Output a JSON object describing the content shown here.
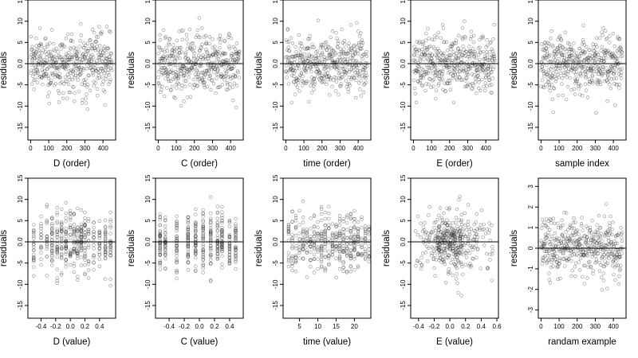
{
  "chart_data": [
    {
      "type": "scatter",
      "xlabel": "D (order)",
      "ylabel": "residuals",
      "xlim": [
        -15,
        470
      ],
      "xticks": [
        0,
        100,
        200,
        300,
        400
      ],
      "xtick_labels": [
        "0",
        "100",
        "200",
        "300",
        "400"
      ],
      "ylim": [
        -18,
        15
      ],
      "yticks": [
        -15,
        -10,
        -5,
        0,
        5,
        10,
        15
      ],
      "ytick_labels": [
        "-15",
        "-10",
        "-5",
        "0.0",
        "5",
        "10",
        "15"
      ],
      "reference_line_y": 0,
      "x_pattern": "index",
      "x_values": [],
      "n_points": 450,
      "spread": 5.5
    },
    {
      "type": "scatter",
      "xlabel": "C (order)",
      "ylabel": "residuals",
      "xlim": [
        -15,
        470
      ],
      "xticks": [
        0,
        100,
        200,
        300,
        400
      ],
      "xtick_labels": [
        "0",
        "100",
        "200",
        "300",
        "400"
      ],
      "ylim": [
        -18,
        15
      ],
      "yticks": [
        -15,
        -10,
        -5,
        0,
        5,
        10,
        15
      ],
      "ytick_labels": [
        "-15",
        "-10",
        "-5",
        "0.0",
        "5",
        "10",
        "15"
      ],
      "reference_line_y": 0,
      "x_pattern": "index",
      "x_values": [],
      "n_points": 450,
      "spread": 5.5
    },
    {
      "type": "scatter",
      "xlabel": "time (order)",
      "ylabel": "residuals",
      "xlim": [
        -15,
        470
      ],
      "xticks": [
        0,
        100,
        200,
        300,
        400
      ],
      "xtick_labels": [
        "0",
        "100",
        "200",
        "300",
        "400"
      ],
      "ylim": [
        -18,
        15
      ],
      "yticks": [
        -15,
        -10,
        -5,
        0,
        5,
        10,
        15
      ],
      "ytick_labels": [
        "-15",
        "-10",
        "-5",
        "0.0",
        "5",
        "10",
        "15"
      ],
      "reference_line_y": 0,
      "x_pattern": "index",
      "x_values": [],
      "n_points": 450,
      "spread": 5.5
    },
    {
      "type": "scatter",
      "xlabel": "E (order)",
      "ylabel": "residuals",
      "xlim": [
        -15,
        470
      ],
      "xticks": [
        0,
        100,
        200,
        300,
        400
      ],
      "xtick_labels": [
        "0",
        "100",
        "200",
        "300",
        "400"
      ],
      "ylim": [
        -18,
        15
      ],
      "yticks": [
        -15,
        -10,
        -5,
        0,
        5,
        10,
        15
      ],
      "ytick_labels": [
        "-15",
        "-10",
        "-5",
        "0.0",
        "5",
        "10",
        "15"
      ],
      "reference_line_y": 0,
      "x_pattern": "index",
      "x_values": [],
      "n_points": 450,
      "spread": 5.5
    },
    {
      "type": "scatter",
      "xlabel": "sample index",
      "ylabel": "residuals",
      "xlim": [
        -15,
        470
      ],
      "xticks": [
        0,
        100,
        200,
        300,
        400
      ],
      "xtick_labels": [
        "0",
        "100",
        "200",
        "300",
        "400"
      ],
      "ylim": [
        -18,
        15
      ],
      "yticks": [
        -15,
        -10,
        -5,
        0,
        5,
        10,
        15
      ],
      "ytick_labels": [
        "-15",
        "-10",
        "-5",
        "0.0",
        "5",
        "10",
        "15"
      ],
      "reference_line_y": 0,
      "x_pattern": "index",
      "x_values": [],
      "n_points": 450,
      "spread": 5.5
    },
    {
      "type": "scatter",
      "xlabel": "D (value)",
      "ylabel": "residuals",
      "xlim": [
        -0.58,
        0.62
      ],
      "xticks": [
        -0.4,
        -0.2,
        0.0,
        0.2,
        0.4
      ],
      "xtick_labels": [
        "-0.4",
        "-0.2",
        "0.0",
        "0.2",
        "0.4"
      ],
      "ylim": [
        -18,
        15
      ],
      "yticks": [
        -15,
        -10,
        -5,
        0,
        5,
        10,
        15
      ],
      "ytick_labels": [
        "-15",
        "-10",
        "-5",
        "0.0",
        "5",
        "10",
        "15"
      ],
      "reference_line_y": 0,
      "x_pattern": "discrete",
      "x_values": [
        -0.5,
        -0.4,
        -0.32,
        -0.25,
        -0.18,
        -0.12,
        -0.06,
        0.0,
        0.05,
        0.1,
        0.15,
        0.2,
        0.25,
        0.32,
        0.4,
        0.48,
        0.55
      ],
      "n_points": 420,
      "spread": 5.5
    },
    {
      "type": "scatter",
      "xlabel": "C (value)",
      "ylabel": "residuals",
      "xlim": [
        -0.58,
        0.58
      ],
      "xticks": [
        -0.4,
        -0.2,
        0.0,
        0.2,
        0.4
      ],
      "xtick_labels": [
        "-0.4",
        "-0.2",
        "0.0",
        "0.2",
        "0.4"
      ],
      "ylim": [
        -18,
        15
      ],
      "yticks": [
        -15,
        -10,
        -5,
        0,
        5,
        10,
        15
      ],
      "ytick_labels": [
        "-15",
        "-10",
        "-5",
        "0.0",
        "5",
        "10",
        "15"
      ],
      "reference_line_y": 0,
      "x_pattern": "discrete",
      "x_values": [
        -0.52,
        -0.45,
        -0.3,
        -0.15,
        -0.05,
        0.05,
        0.15,
        0.24,
        0.3,
        0.4,
        0.48
      ],
      "n_points": 420,
      "spread": 5.5
    },
    {
      "type": "scatter",
      "xlabel": "time (value)",
      "ylabel": "residuals",
      "xlim": [
        0.5,
        24.5
      ],
      "xticks": [
        5,
        10,
        15,
        20
      ],
      "xtick_labels": [
        "5",
        "10",
        "15",
        "20"
      ],
      "ylim": [
        -18,
        15
      ],
      "yticks": [
        -15,
        -10,
        -5,
        0,
        5,
        10,
        15
      ],
      "ytick_labels": [
        "-15",
        "-10",
        "-5",
        "0.0",
        "5",
        "10",
        "15"
      ],
      "reference_line_y": 0,
      "x_pattern": "discrete",
      "x_values": [
        2,
        3,
        4,
        5,
        6,
        7,
        8,
        9,
        10,
        11,
        12,
        13,
        14,
        15,
        16,
        17,
        18,
        19,
        20,
        21,
        22,
        23,
        24
      ],
      "n_points": 420,
      "spread": 5.5
    },
    {
      "type": "scatter",
      "xlabel": "E (value)",
      "ylabel": "residuals",
      "xlim": [
        -0.5,
        0.62
      ],
      "xticks": [
        -0.4,
        -0.2,
        0.0,
        0.2,
        0.4,
        0.6
      ],
      "xtick_labels": [
        "-0.4",
        "-0.2",
        "0.0",
        "0.2",
        "0.4",
        "0.6"
      ],
      "ylim": [
        -18,
        15
      ],
      "yticks": [
        -15,
        -10,
        -5,
        0,
        5,
        10,
        15
      ],
      "ytick_labels": [
        "-15",
        "-10",
        "-5",
        "0.0",
        "5",
        "10",
        "15"
      ],
      "reference_line_y": 0,
      "x_pattern": "clustered",
      "x_values": [],
      "n_points": 420,
      "spread": 5.5
    },
    {
      "type": "scatter",
      "xlabel": "randam example",
      "ylabel": "residuals",
      "xlim": [
        -15,
        470
      ],
      "xticks": [
        0,
        100,
        200,
        300,
        400
      ],
      "xtick_labels": [
        "0",
        "100",
        "200",
        "300",
        "400"
      ],
      "ylim": [
        -3.4,
        3.4
      ],
      "yticks": [
        -3,
        -2,
        -1,
        0,
        1,
        2,
        3
      ],
      "ytick_labels": [
        "-3",
        "-2",
        "-1",
        "0",
        "1",
        "2",
        "3"
      ],
      "reference_line_y": 0,
      "x_pattern": "index",
      "x_values": [],
      "n_points": 450,
      "spread": 1.1
    }
  ]
}
